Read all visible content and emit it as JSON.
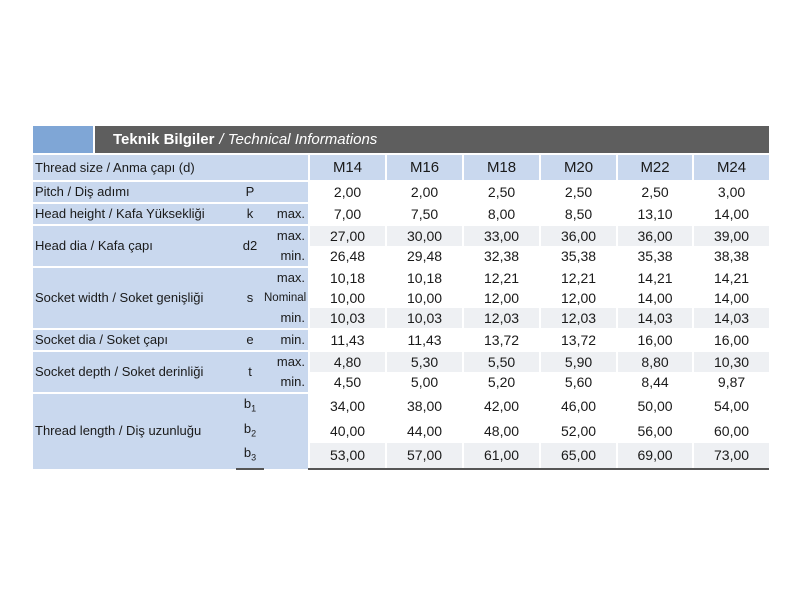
{
  "header": {
    "title_tr": "Teknik Bilgiler",
    "title_en": "/ Technical Informations"
  },
  "table": {
    "thread_size_label": "Thread size / Anma çapı (d)",
    "sizes": [
      "M14",
      "M16",
      "M18",
      "M20",
      "M22",
      "M24"
    ],
    "pitch": {
      "label": "Pitch / Diş adımı",
      "symbol": "P",
      "values": [
        "2,00",
        "2,00",
        "2,50",
        "2,50",
        "2,50",
        "3,00"
      ]
    },
    "head_height": {
      "label": "Head height / Kafa Yüksekliği",
      "symbol": "k",
      "qualifier": "max.",
      "values": [
        "7,00",
        "7,50",
        "8,00",
        "8,50",
        "13,10",
        "14,00"
      ]
    },
    "head_dia": {
      "label": "Head dia / Kafa çapı",
      "symbol": "d2",
      "max_label": "max.",
      "max": [
        "27,00",
        "30,00",
        "33,00",
        "36,00",
        "36,00",
        "39,00"
      ],
      "min_label": "min.",
      "min": [
        "26,48",
        "29,48",
        "32,38",
        "35,38",
        "35,38",
        "38,38"
      ]
    },
    "socket_width": {
      "label": "Socket width / Soket genişliği",
      "symbol": "s",
      "max_label": "max.",
      "max": [
        "10,18",
        "10,18",
        "12,21",
        "12,21",
        "14,21",
        "14,21"
      ],
      "nominal_label": "Nominal",
      "nominal": [
        "10,00",
        "10,00",
        "12,00",
        "12,00",
        "14,00",
        "14,00"
      ],
      "min_label": "min.",
      "min": [
        "10,03",
        "10,03",
        "12,03",
        "12,03",
        "14,03",
        "14,03"
      ]
    },
    "socket_dia": {
      "label": "Socket dia / Soket çapı",
      "symbol": "e",
      "qualifier": "min.",
      "values": [
        "11,43",
        "11,43",
        "13,72",
        "13,72",
        "16,00",
        "16,00"
      ]
    },
    "socket_depth": {
      "label": "Socket depth / Soket derinliği",
      "symbol": "t",
      "max_label": "max.",
      "max": [
        "4,80",
        "5,30",
        "5,50",
        "5,90",
        "8,80",
        "10,30"
      ],
      "min_label": "min.",
      "min": [
        "4,50",
        "5,00",
        "5,20",
        "5,60",
        "8,44",
        "9,87"
      ]
    },
    "thread_length": {
      "label": "Thread length / Diş uzunluğu",
      "symbol": "b",
      "sub1": "1",
      "b1": [
        "34,00",
        "38,00",
        "42,00",
        "46,00",
        "50,00",
        "54,00"
      ],
      "sub2": "2",
      "b2": [
        "40,00",
        "44,00",
        "48,00",
        "52,00",
        "56,00",
        "60,00"
      ],
      "sub3": "3",
      "b3": [
        "53,00",
        "57,00",
        "61,00",
        "65,00",
        "69,00",
        "73,00"
      ]
    }
  }
}
